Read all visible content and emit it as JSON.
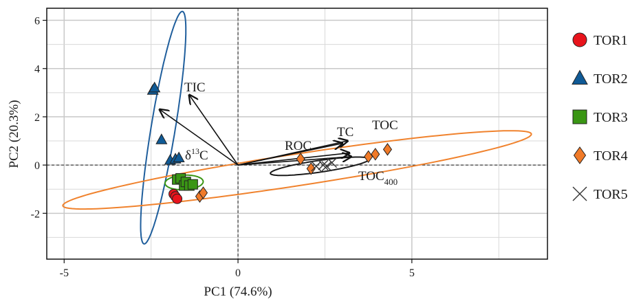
{
  "chart_data": {
    "type": "scatter",
    "xlabel": "PC1 (74.6%)",
    "ylabel": "PC2 (20.3%)",
    "xlim": [
      -5.5,
      8.9
    ],
    "ylim": [
      -3.9,
      6.5
    ],
    "xticks": [
      -5,
      0,
      5
    ],
    "yticks": [
      -2,
      0,
      2,
      4,
      6
    ],
    "xticklabels": [
      "-5",
      "0",
      "5"
    ],
    "yticklabels": [
      "-2",
      "0",
      "2",
      "4",
      "6"
    ],
    "grid": true,
    "legend_position": "right",
    "zero_lines": true,
    "series": [
      {
        "name": "TOR1",
        "marker": "circle",
        "color": "#e8141c",
        "points": [
          [
            -1.85,
            -1.2
          ],
          [
            -1.8,
            -1.3
          ],
          [
            -1.75,
            -1.4
          ]
        ]
      },
      {
        "name": "TOR2",
        "marker": "triangle",
        "color": "#0f5a96",
        "points": [
          [
            -2.45,
            3.1
          ],
          [
            -2.4,
            3.2
          ],
          [
            -2.2,
            1.05
          ],
          [
            -1.95,
            0.2
          ],
          [
            -1.8,
            0.25
          ],
          [
            -1.7,
            0.3
          ]
        ]
      },
      {
        "name": "TOR3",
        "marker": "square",
        "color": "#3a9614",
        "points": [
          [
            -1.75,
            -0.6
          ],
          [
            -1.65,
            -0.55
          ],
          [
            -1.55,
            -0.85
          ],
          [
            -1.5,
            -0.7
          ],
          [
            -1.4,
            -0.85
          ],
          [
            -1.3,
            -0.8
          ]
        ]
      },
      {
        "name": "TOR4",
        "marker": "diamond",
        "color": "#f07a28",
        "points": [
          [
            -1.1,
            -1.3
          ],
          [
            -1.0,
            -1.15
          ],
          [
            1.8,
            0.25
          ],
          [
            2.1,
            -0.15
          ],
          [
            3.75,
            0.35
          ],
          [
            3.95,
            0.45
          ],
          [
            4.3,
            0.65
          ]
        ]
      },
      {
        "name": "TOR5",
        "marker": "cross",
        "color": "#333333",
        "points": [
          [
            2.25,
            -0.05
          ],
          [
            2.45,
            0.0
          ],
          [
            2.55,
            -0.05
          ],
          [
            2.7,
            0.1
          ]
        ]
      }
    ],
    "ellipses": [
      {
        "group": "TOR2",
        "color": "#1f5e9c",
        "cx": -2.15,
        "cy": 1.55,
        "rx": 4.85,
        "ry": 0.35,
        "angle_deg": 83.5
      },
      {
        "group": "TOR3",
        "color": "#3a9614",
        "cx": -1.55,
        "cy": -0.72,
        "rx": 0.55,
        "ry": 0.3,
        "angle_deg": 5
      },
      {
        "group": "TOR4",
        "color": "#f0822d",
        "cx": 1.7,
        "cy": -0.2,
        "rx": 6.9,
        "ry": 0.65,
        "angle_deg": 12.5
      },
      {
        "group": "TOR5",
        "color": "#1a1a1a",
        "cx": 2.35,
        "cy": -0.05,
        "rx": 1.45,
        "ry": 0.24,
        "angle_deg": 12
      }
    ],
    "loadings": [
      {
        "label": "TIC",
        "x": -1.4,
        "y": 2.9
      },
      {
        "label": "δ13C",
        "x": -2.25,
        "y": 2.3
      },
      {
        "label": "ROC",
        "x": 3.0,
        "y": 0.9
      },
      {
        "label": "TC",
        "x": 3.15,
        "y": 1.0
      },
      {
        "label": "TOC",
        "x": 3.2,
        "y": 0.5
      },
      {
        "label": "TOC400",
        "x": 3.25,
        "y": 0.35
      }
    ],
    "loading_labels": {
      "TIC": "TIC",
      "d13C_base": "δ",
      "d13C_sup": "13",
      "d13C_tail": "C",
      "ROC": "ROC",
      "TC": "TC",
      "TOC": "TOC",
      "TOC400_base": "TOC",
      "TOC400_sub": "400"
    }
  }
}
